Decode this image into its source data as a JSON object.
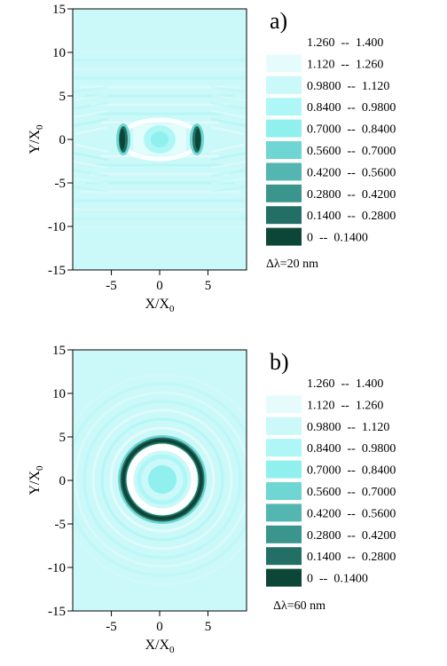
{
  "chart_data": [
    {
      "type": "heatmap",
      "panel_label": "a)",
      "xlabel": "X/X",
      "xlabel_sub": "0",
      "ylabel": "Y/X",
      "ylabel_sub": "0",
      "xlim": [
        -9,
        9
      ],
      "ylim": [
        -15,
        15
      ],
      "xticks": [
        "-5",
        "0",
        "5"
      ],
      "yticks": [
        "15",
        "10",
        "5",
        "0",
        "-5",
        "-10",
        "-15"
      ],
      "background_level": 0.98,
      "pattern": "two dark crescent lobes at x = -3.8 and x = 3.8 along y = 0, central bright spot, horizontal fringes",
      "annotation": "Δλ=20 nm",
      "legend": {
        "placement": "right",
        "entries": [
          {
            "range": "1.260  --  1.400",
            "color": "#ffffff"
          },
          {
            "range": "1.120  --  1.260",
            "color": "#e6fcfc"
          },
          {
            "range": "0.9800  --  1.120",
            "color": "#cbf8f8"
          },
          {
            "range": "0.8400  --  0.9800",
            "color": "#aef7f6"
          },
          {
            "range": "0.7000  --  0.8400",
            "color": "#8ff0ee"
          },
          {
            "range": "0.5600  --  0.7000",
            "color": "#6fd6d3"
          },
          {
            "range": "0.4200  --  0.5600",
            "color": "#54b6b0"
          },
          {
            "range": "0.2800  --  0.4200",
            "color": "#3a958c"
          },
          {
            "range": "0.1400  --  0.2800",
            "color": "#246f65"
          },
          {
            "range": "0  --  0.1400",
            "color": "#0c4636"
          }
        ]
      }
    },
    {
      "type": "heatmap",
      "panel_label": "b)",
      "xlabel": "X/X",
      "xlabel_sub": "0",
      "ylabel": "Y/X",
      "ylabel_sub": "0",
      "xlim": [
        -9,
        9
      ],
      "ylim": [
        -15,
        15
      ],
      "xticks": [
        "-5",
        "0",
        "5"
      ],
      "yticks": [
        "15",
        "10",
        "5",
        "0",
        "-5",
        "-10",
        "-15"
      ],
      "background_level": 0.98,
      "pattern": "dark ring of radius about 4.1 centred at origin, bright centre, concentric fringes",
      "annotation": "Δλ=60 nm",
      "legend": {
        "placement": "right",
        "entries": [
          {
            "range": "1.260  --  1.400",
            "color": "#ffffff"
          },
          {
            "range": "1.120  --  1.260",
            "color": "#e6fcfc"
          },
          {
            "range": "0.9800  --  1.120",
            "color": "#cbf8f8"
          },
          {
            "range": "0.8400  --  0.9800",
            "color": "#aef7f6"
          },
          {
            "range": "0.7000  --  0.8400",
            "color": "#8ff0ee"
          },
          {
            "range": "0.5600  --  0.7000",
            "color": "#6fd6d3"
          },
          {
            "range": "0.4200  --  0.5600",
            "color": "#54b6b0"
          },
          {
            "range": "0.2800  --  0.4200",
            "color": "#3a958c"
          },
          {
            "range": "0.1400  --  0.2800",
            "color": "#246f65"
          },
          {
            "range": "0  --  0.1400",
            "color": "#0c4636"
          }
        ]
      }
    }
  ]
}
